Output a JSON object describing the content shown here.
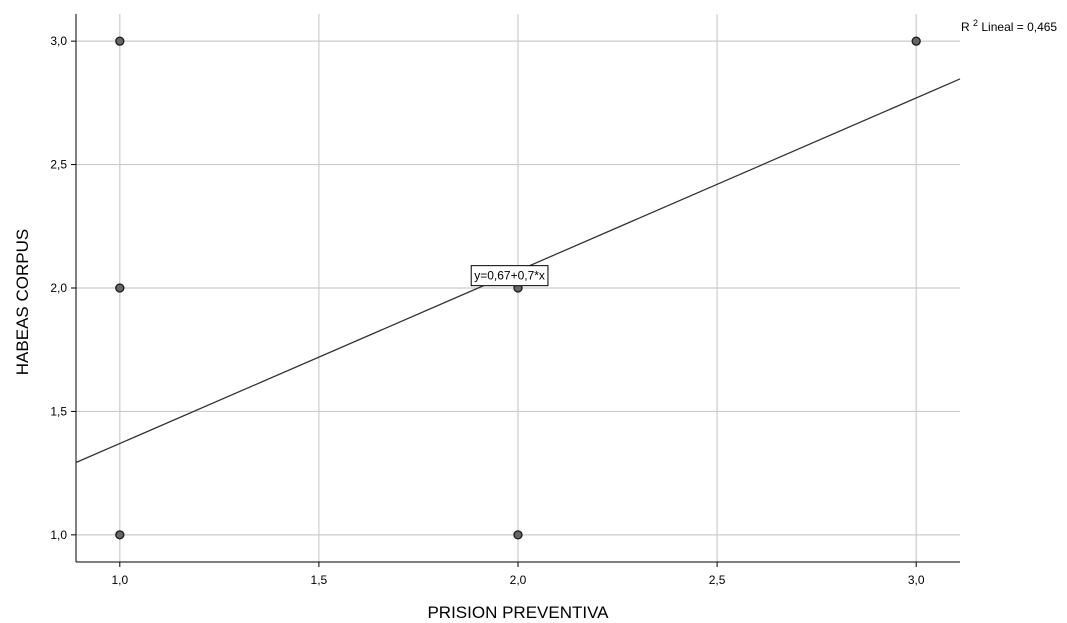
{
  "chart_data": {
    "type": "scatter",
    "xlabel": "PRISION PREVENTIVA",
    "ylabel": "HABEAS CORPUS",
    "xlim": [
      0.89,
      3.11
    ],
    "ylim": [
      0.89,
      3.11
    ],
    "x_ticks": [
      1.0,
      1.5,
      2.0,
      2.5,
      3.0
    ],
    "x_tick_labels": [
      "1,0",
      "1,5",
      "2,0",
      "2,5",
      "3,0"
    ],
    "y_ticks": [
      1.0,
      1.5,
      2.0,
      2.5,
      3.0
    ],
    "y_tick_labels": [
      "1,0",
      "1,5",
      "2,0",
      "2,5",
      "3,0"
    ],
    "grid": true,
    "points": [
      {
        "x": 1.0,
        "y": 3.0
      },
      {
        "x": 1.0,
        "y": 2.0
      },
      {
        "x": 1.0,
        "y": 1.0
      },
      {
        "x": 2.0,
        "y": 2.0
      },
      {
        "x": 2.0,
        "y": 1.0
      },
      {
        "x": 3.0,
        "y": 3.0
      }
    ],
    "fit_line": {
      "intercept": 0.67,
      "slope": 0.7
    },
    "equation_label": "y=0,67+0,7*x",
    "r2_prefix": "R",
    "r2_sup": "2",
    "r2_suffix": " Lineal = 0,465",
    "colors": {
      "marker_fill": "#666666",
      "marker_stroke": "#1a1a1a",
      "line": "#333333",
      "grid": "#cccccc",
      "axis": "#000000"
    }
  }
}
